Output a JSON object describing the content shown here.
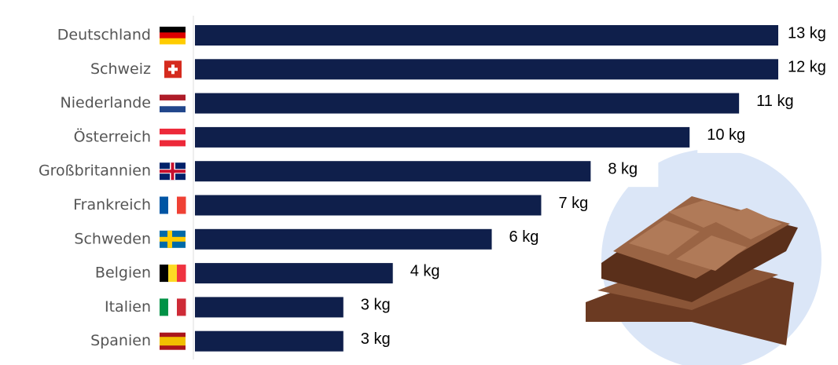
{
  "chart_data": {
    "type": "hbar",
    "categories": [
      "Deutschland",
      "Schweiz",
      "Niederlande",
      "Österreich",
      "Großbritannien",
      "Frankreich",
      "Schweden",
      "Belgien",
      "Italien",
      "Spanien"
    ],
    "values": [
      13,
      12,
      11,
      10,
      8,
      7,
      6,
      4,
      3,
      3
    ],
    "value_labels": [
      "13 kg",
      "12 kg",
      "11 kg",
      "10 kg",
      "8 kg",
      "7 kg",
      "6 kg",
      "4 kg",
      "3 kg",
      "3 kg"
    ],
    "color": "#0f1f4b"
  }
}
